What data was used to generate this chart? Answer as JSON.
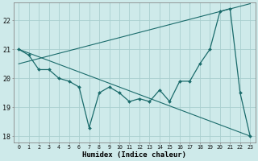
{
  "xlabel": "Humidex (Indice chaleur)",
  "background_color": "#ceeaea",
  "grid_color": "#aacfcf",
  "line_color": "#1a6b6b",
  "x_data": [
    0,
    1,
    2,
    3,
    4,
    5,
    6,
    7,
    8,
    9,
    10,
    11,
    12,
    13,
    14,
    15,
    16,
    17,
    18,
    19,
    20,
    21,
    22,
    23
  ],
  "y_main": [
    21.0,
    20.8,
    20.3,
    20.3,
    20.0,
    19.9,
    19.7,
    18.3,
    19.5,
    19.7,
    19.5,
    19.2,
    19.3,
    19.2,
    19.6,
    19.2,
    19.9,
    19.9,
    20.5,
    21.0,
    22.3,
    22.4,
    19.5,
    18.0
  ],
  "y_trend_down": [
    21.0,
    20.87,
    20.74,
    20.61,
    20.48,
    20.35,
    20.22,
    20.09,
    19.96,
    19.83,
    19.7,
    19.57,
    19.44,
    19.31,
    19.18,
    19.05,
    18.92,
    18.79,
    18.66,
    18.53,
    18.4,
    18.27,
    18.14,
    18.01
  ],
  "y_trend_up": [
    20.5,
    20.59,
    20.68,
    20.77,
    20.86,
    20.95,
    21.04,
    21.13,
    21.22,
    21.31,
    21.4,
    21.49,
    21.58,
    21.67,
    21.76,
    21.85,
    21.94,
    22.03,
    22.12,
    22.21,
    22.3,
    22.39,
    22.48,
    22.57
  ],
  "xlim": [
    0,
    23
  ],
  "ylim": [
    17.8,
    22.6
  ],
  "yticks": [
    18,
    19,
    20,
    21,
    22
  ],
  "xticks": [
    0,
    1,
    2,
    3,
    4,
    5,
    6,
    7,
    8,
    9,
    10,
    11,
    12,
    13,
    14,
    15,
    16,
    17,
    18,
    19,
    20,
    21,
    22,
    23
  ]
}
